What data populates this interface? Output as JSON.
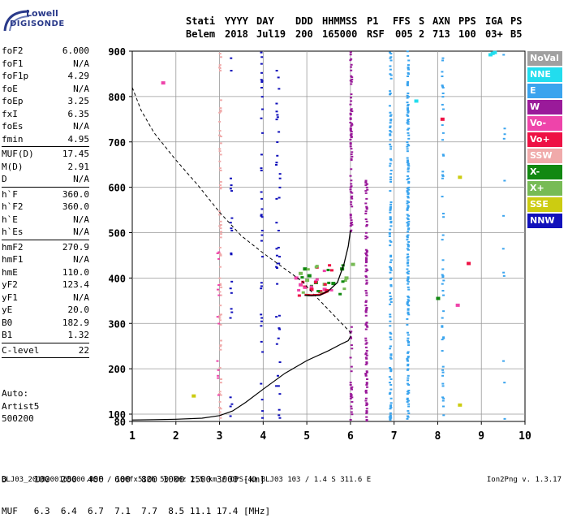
{
  "logo": {
    "line1": "Lowell",
    "line2": "DIGISONDE"
  },
  "header": {
    "labels": {
      "stati": "Stati",
      "yyyy": "YYYY",
      "day": "DAY",
      "ddd": "DDD",
      "hhmmss": "HHMMSS",
      "p1": "P1",
      "ffs": "FFS",
      "s": "S",
      "axn": "AXN",
      "pps": "PPS",
      "iga": "IGA",
      "ps": "PS"
    },
    "values": {
      "stati": "Belem",
      "yyyy": "2018",
      "day": "Jul19",
      "ddd": "200",
      "hhmmss": "165000",
      "p1": "RSF",
      "ffs": "005",
      "s": "2",
      "axn": "713",
      "pps": "100",
      "iga": "03+",
      "ps": "B5"
    }
  },
  "params": [
    {
      "label": "foF2",
      "value": "6.000"
    },
    {
      "label": "foF1",
      "value": "N/A"
    },
    {
      "label": "foF1p",
      "value": "4.29"
    },
    {
      "label": "foE",
      "value": "N/A"
    },
    {
      "label": "foEp",
      "value": "3.25"
    },
    {
      "label": "fxI",
      "value": "6.35"
    },
    {
      "label": "foEs",
      "value": "N/A"
    },
    {
      "label": "fmin",
      "value": "4.95"
    },
    {
      "sep": true
    },
    {
      "label": "MUF(D)",
      "value": "17.45"
    },
    {
      "label": "M(D)",
      "value": "2.91"
    },
    {
      "label": "D",
      "value": "N/A"
    },
    {
      "sep": true
    },
    {
      "label": "h`F",
      "value": "360.0"
    },
    {
      "label": "h`F2",
      "value": "360.0"
    },
    {
      "label": "h`E",
      "value": "N/A"
    },
    {
      "label": "h`Es",
      "value": "N/A"
    },
    {
      "sep": true
    },
    {
      "label": "hmF2",
      "value": "270.9"
    },
    {
      "label": "hmF1",
      "value": "N/A"
    },
    {
      "label": "hmE",
      "value": "110.0"
    },
    {
      "label": "yF2",
      "value": "123.4"
    },
    {
      "label": "yF1",
      "value": "N/A"
    },
    {
      "label": "yE",
      "value": "20.0"
    },
    {
      "label": "B0",
      "value": "182.9"
    },
    {
      "label": "B1",
      "value": "1.32"
    },
    {
      "sep": true
    },
    {
      "label": "C-level",
      "value": "22"
    },
    {
      "sep": true
    }
  ],
  "auto": {
    "line1": "Auto:",
    "line2": "Artist5",
    "line3": "500200"
  },
  "legend": [
    {
      "label": "NoVal",
      "color": "#a0a0a0"
    },
    {
      "label": "NNE",
      "color": "#22ddee"
    },
    {
      "label": "E",
      "color": "#3aa4ee"
    },
    {
      "label": "W",
      "color": "#9a1a9a"
    },
    {
      "label": "Vo-",
      "color": "#ee44aa"
    },
    {
      "label": "Vo+",
      "color": "#ee1144"
    },
    {
      "label": "SSW",
      "color": "#f0aaaa"
    },
    {
      "label": "X-",
      "color": "#118811"
    },
    {
      "label": "X+",
      "color": "#77bb55"
    },
    {
      "label": "SSE",
      "color": "#cccc11"
    },
    {
      "label": "NNW",
      "color": "#1111bb"
    }
  ],
  "bottom": {
    "d_row": "D     100  200  400  600  800 1000 1500 3000 [km]",
    "muf_row": "MUF   6.3  6.4  6.7  7.1  7.7  8.5 11.1 17.4 [MHz]"
  },
  "footer": {
    "left": "BLJ03_2018200165000.RSF / 180fx512h 50 kHz 2.5 km / DPS-4D BLJ03 103 / 1.4 S 311.6 E",
    "right": "Ion2Png v. 1.3.17"
  },
  "chart_data": {
    "type": "scatter",
    "xlim": [
      1,
      10
    ],
    "ylim": [
      80,
      900
    ],
    "xticks": [
      "1",
      "2",
      "3",
      "4",
      "5",
      "6",
      "7",
      "8",
      "9",
      "10"
    ],
    "yticks": [
      "80",
      "100",
      "200",
      "300",
      "400",
      "500",
      "600",
      "700",
      "800",
      "900"
    ],
    "grid": true,
    "legend_placement": "right",
    "profile_solid": [
      [
        1,
        84
      ],
      [
        1.5,
        85
      ],
      [
        2,
        86
      ],
      [
        2.6,
        89
      ],
      [
        3,
        96
      ],
      [
        3.3,
        107
      ],
      [
        3.6,
        126
      ],
      [
        4,
        155
      ],
      [
        4.5,
        190
      ],
      [
        5,
        218
      ],
      [
        5.5,
        240
      ],
      [
        5.8,
        255
      ],
      [
        5.95,
        262
      ],
      [
        6.0,
        271
      ]
    ],
    "profile_dashed": [
      [
        1,
        820
      ],
      [
        1.2,
        770
      ],
      [
        1.5,
        720
      ],
      [
        2,
        660
      ],
      [
        2.5,
        605
      ],
      [
        3,
        545
      ],
      [
        3.5,
        493
      ],
      [
        4,
        455
      ],
      [
        4.5,
        420
      ],
      [
        4.9,
        392
      ],
      [
        5.2,
        360
      ],
      [
        5.5,
        330
      ],
      [
        5.8,
        300
      ],
      [
        6.0,
        280
      ],
      [
        6.0,
        271
      ]
    ],
    "trace_black": [
      [
        4.95,
        362
      ],
      [
        5.1,
        361
      ],
      [
        5.3,
        362
      ],
      [
        5.5,
        372
      ],
      [
        5.7,
        390
      ],
      [
        5.85,
        430
      ],
      [
        5.95,
        470
      ],
      [
        6.0,
        505
      ]
    ],
    "trace_red": [
      [
        4.95,
        363
      ],
      [
        5.1,
        362
      ],
      [
        5.3,
        363
      ],
      [
        5.5,
        371
      ]
    ],
    "e_columns": [
      6.9,
      7.3,
      8.1
    ],
    "w_columns": [
      6.0,
      6.35
    ],
    "nnw_columns": [
      3.25,
      3.95,
      4.35
    ],
    "ssw_columns": [
      3.0
    ],
    "x_minus_points": [
      [
        4.95,
        420
      ],
      [
        5.05,
        405
      ],
      [
        5.2,
        390
      ],
      [
        5.6,
        388
      ],
      [
        5.8,
        420
      ],
      [
        8.0,
        355
      ]
    ],
    "x_plus_points": [
      [
        4.85,
        410
      ],
      [
        5.0,
        395
      ],
      [
        5.4,
        386
      ],
      [
        5.9,
        400
      ],
      [
        6.05,
        430
      ]
    ],
    "vo_minus_points": [
      [
        4.75,
        400
      ],
      [
        4.85,
        385
      ],
      [
        5.4,
        375
      ],
      [
        1.7,
        830
      ],
      [
        8.45,
        340
      ]
    ],
    "vo_plus_points": [
      [
        4.95,
        380
      ],
      [
        5.1,
        375
      ],
      [
        5.3,
        370
      ],
      [
        5.45,
        372
      ],
      [
        8.1,
        750
      ],
      [
        8.7,
        432
      ]
    ],
    "sse_points": [
      [
        8.5,
        622
      ],
      [
        8.5,
        120
      ],
      [
        2.4,
        140
      ]
    ],
    "nne_points": [
      [
        9.2,
        892
      ],
      [
        9.25,
        895
      ],
      [
        9.3,
        897
      ],
      [
        7.5,
        790
      ]
    ]
  }
}
